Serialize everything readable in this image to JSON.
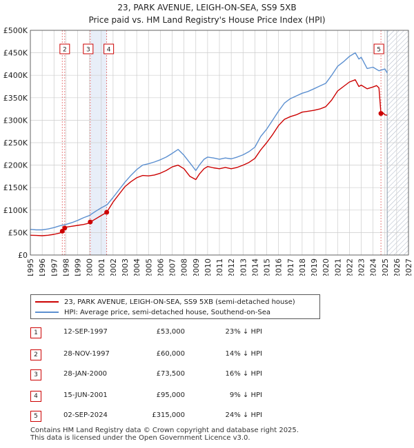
{
  "title": {
    "line1": "23, PARK AVENUE, LEIGH-ON-SEA, SS9 5XB",
    "line2": "Price paid vs. HM Land Registry's House Price Index (HPI)"
  },
  "colors": {
    "property": "#cc0000",
    "hpi": "#5b8fd0",
    "shade": "#e8eef8",
    "hatch": "#aab4c4",
    "grid": "#cccccc",
    "vline": "#e06060"
  },
  "chart_data": {
    "type": "line",
    "title": "Price paid vs. HM Land Registry's House Price Index (HPI)",
    "xlim": [
      1995,
      2027
    ],
    "ylim": [
      0,
      500000
    ],
    "y_ticks": [
      0,
      50000,
      100000,
      150000,
      200000,
      250000,
      300000,
      350000,
      400000,
      450000,
      500000
    ],
    "y_tick_labels": [
      "£0",
      "£50K",
      "£100K",
      "£150K",
      "£200K",
      "£250K",
      "£300K",
      "£350K",
      "£400K",
      "£450K",
      "£500K"
    ],
    "x_ticks": [
      1995,
      1996,
      1997,
      1998,
      1999,
      2000,
      2001,
      2002,
      2003,
      2004,
      2005,
      2006,
      2007,
      2008,
      2009,
      2010,
      2011,
      2012,
      2013,
      2014,
      2015,
      2016,
      2017,
      2018,
      2019,
      2020,
      2021,
      2022,
      2023,
      2024,
      2025,
      2026,
      2027
    ],
    "x_tick_labels": [
      "1995",
      "1996",
      "1997",
      "1998",
      "1999",
      "2000",
      "2001",
      "2002",
      "2003",
      "2004",
      "2005",
      "2006",
      "2007",
      "2008",
      "2009",
      "2010",
      "2011",
      "2012",
      "2013",
      "2014",
      "2015",
      "2016",
      "2017",
      "2018",
      "2019",
      "2020",
      "2021",
      "2022",
      "2023",
      "2024",
      "2025",
      "2026",
      "2027"
    ],
    "shaded_span": [
      2000.07,
      2001.46
    ],
    "hatched_from": 2025.2,
    "series": [
      {
        "name": "23, PARK AVENUE, LEIGH-ON-SEA, SS9 5XB (semi-detached house)",
        "color": "#cc0000",
        "x": [
          1995.0,
          1995.5,
          1996.0,
          1996.5,
          1997.0,
          1997.5,
          1997.7,
          1997.9,
          1998.0,
          1998.5,
          1999.0,
          1999.5,
          2000.0,
          2000.07,
          2000.5,
          2001.0,
          2001.46,
          2002.0,
          2002.5,
          2003.0,
          2003.5,
          2004.0,
          2004.5,
          2005.0,
          2005.5,
          2006.0,
          2006.5,
          2007.0,
          2007.5,
          2008.0,
          2008.5,
          2009.0,
          2009.3,
          2009.7,
          2010.0,
          2010.5,
          2011.0,
          2011.5,
          2012.0,
          2012.5,
          2013.0,
          2013.5,
          2014.0,
          2014.5,
          2015.0,
          2015.5,
          2016.0,
          2016.5,
          2017.0,
          2017.5,
          2018.0,
          2018.5,
          2019.0,
          2019.5,
          2020.0,
          2020.5,
          2021.0,
          2021.5,
          2022.0,
          2022.5,
          2022.8,
          2023.0,
          2023.5,
          2024.0,
          2024.3,
          2024.5,
          2024.67,
          2024.8,
          2025.0,
          2025.2
        ],
        "values": [
          44000,
          43500,
          43000,
          44000,
          46000,
          49000,
          53000,
          60000,
          62000,
          64000,
          66000,
          68000,
          71000,
          73500,
          80000,
          88000,
          95000,
          118000,
          135000,
          152000,
          163000,
          172000,
          177000,
          176000,
          178000,
          182000,
          188000,
          196000,
          200000,
          192000,
          175000,
          168000,
          180000,
          192000,
          197000,
          194000,
          192000,
          195000,
          192000,
          195000,
          200000,
          206000,
          215000,
          234000,
          250000,
          268000,
          288000,
          302000,
          308000,
          312000,
          318000,
          320000,
          322000,
          325000,
          330000,
          345000,
          365000,
          375000,
          385000,
          390000,
          375000,
          378000,
          370000,
          374000,
          377000,
          372000,
          315000,
          318000,
          312000,
          311000
        ]
      },
      {
        "name": "HPI: Average price, semi-detached house, Southend-on-Sea",
        "color": "#5b8fd0",
        "x": [
          1995.0,
          1995.5,
          1996.0,
          1996.5,
          1997.0,
          1997.5,
          1998.0,
          1998.5,
          1999.0,
          1999.5,
          2000.0,
          2000.5,
          2001.0,
          2001.5,
          2002.0,
          2002.5,
          2003.0,
          2003.5,
          2004.0,
          2004.5,
          2005.0,
          2005.5,
          2006.0,
          2006.5,
          2007.0,
          2007.5,
          2008.0,
          2008.5,
          2009.0,
          2009.3,
          2009.7,
          2010.0,
          2010.5,
          2011.0,
          2011.5,
          2012.0,
          2012.5,
          2013.0,
          2013.5,
          2014.0,
          2014.5,
          2015.0,
          2015.5,
          2016.0,
          2016.5,
          2017.0,
          2017.5,
          2018.0,
          2018.5,
          2019.0,
          2019.5,
          2020.0,
          2020.5,
          2021.0,
          2021.5,
          2022.0,
          2022.5,
          2022.8,
          2023.0,
          2023.5,
          2024.0,
          2024.5,
          2025.0,
          2025.2
        ],
        "values": [
          57000,
          56000,
          56000,
          58000,
          61000,
          65000,
          68000,
          72000,
          77000,
          83000,
          88000,
          97000,
          105000,
          112000,
          128000,
          145000,
          162000,
          177000,
          190000,
          200000,
          203000,
          207000,
          212000,
          218000,
          226000,
          235000,
          222000,
          205000,
          188000,
          200000,
          213000,
          218000,
          216000,
          213000,
          216000,
          214000,
          218000,
          223000,
          230000,
          240000,
          264000,
          280000,
          300000,
          320000,
          338000,
          348000,
          354000,
          360000,
          364000,
          370000,
          376000,
          382000,
          400000,
          420000,
          430000,
          442000,
          450000,
          436000,
          440000,
          415000,
          418000,
          410000,
          414000,
          405000
        ]
      }
    ],
    "sales": [
      {
        "label": "1",
        "x": 1997.7,
        "value": 53000
      },
      {
        "label": "2",
        "x": 1997.91,
        "value": 60000
      },
      {
        "label": "3",
        "x": 2000.07,
        "value": 73500
      },
      {
        "label": "4",
        "x": 2001.46,
        "value": 95000
      },
      {
        "label": "5",
        "x": 2024.67,
        "value": 315000
      }
    ]
  },
  "legend": {
    "property": "23, PARK AVENUE, LEIGH-ON-SEA, SS9 5XB (semi-detached house)",
    "hpi": "HPI: Average price, semi-detached house, Southend-on-Sea"
  },
  "sales_table": [
    {
      "num": "1",
      "date": "12-SEP-1997",
      "price": "£53,000",
      "hpi": "23% ↓ HPI"
    },
    {
      "num": "2",
      "date": "28-NOV-1997",
      "price": "£60,000",
      "hpi": "14% ↓ HPI"
    },
    {
      "num": "3",
      "date": "28-JAN-2000",
      "price": "£73,500",
      "hpi": "16% ↓ HPI"
    },
    {
      "num": "4",
      "date": "15-JUN-2001",
      "price": "£95,000",
      "hpi": "9% ↓ HPI"
    },
    {
      "num": "5",
      "date": "02-SEP-2024",
      "price": "£315,000",
      "hpi": "24% ↓ HPI"
    }
  ],
  "footer": {
    "line1": "Contains HM Land Registry data © Crown copyright and database right 2025.",
    "line2": "This data is licensed under the Open Government Licence v3.0."
  }
}
